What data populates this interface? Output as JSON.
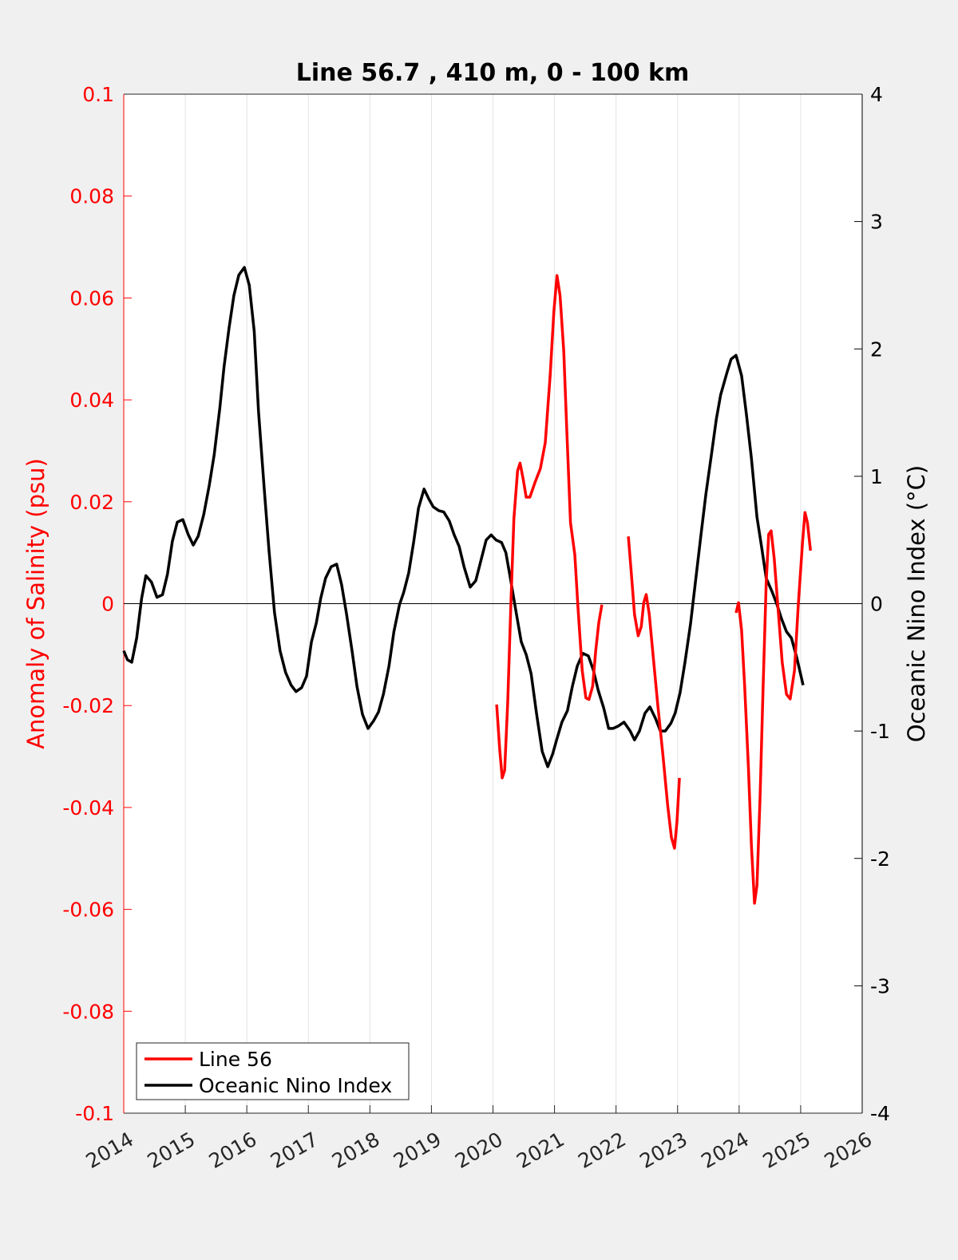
{
  "chart_data": {
    "type": "line",
    "title": "Line 56.7 , 410 m, 0 - 100 km",
    "ylabel": "Anomaly of Salinity (psu)",
    "y2label": "Oceanic Nino Index (°C)",
    "y_color": "#ff0000",
    "y2_color": "#000000",
    "xlim": [
      2014,
      2026
    ],
    "xticks": [
      2014,
      2015,
      2016,
      2017,
      2018,
      2019,
      2020,
      2021,
      2022,
      2023,
      2024,
      2025,
      2026
    ],
    "ylim": [
      -0.1,
      0.1
    ],
    "yticks": [
      -0.1,
      -0.08,
      -0.06,
      -0.04,
      -0.02,
      0,
      0.02,
      0.04,
      0.06,
      0.08,
      0.1
    ],
    "y2lim": [
      -4,
      4
    ],
    "y2ticks": [
      -4,
      -3,
      -2,
      -1,
      0,
      1,
      2,
      3,
      4
    ],
    "grid": true,
    "zero_line": true,
    "legend": "lower left",
    "series": [
      {
        "name": "Line 56",
        "color": "#ff0000",
        "axis": "y",
        "x": [
          2020.06,
          2020.11,
          2020.15,
          2020.19,
          2020.24,
          2020.29,
          2020.34,
          2020.4,
          2020.44,
          2020.49,
          2020.54,
          2020.6,
          2020.68,
          2020.77,
          2020.85,
          2020.93,
          2020.99,
          2021.04,
          2021.09,
          2021.15,
          2021.2,
          2021.26,
          2021.33,
          2021.38,
          2021.45,
          2021.51,
          2021.56,
          2021.62,
          2021.67,
          2021.72,
          2021.77,
          null,
          2022.2,
          2022.25,
          2022.3,
          2022.36,
          2022.41,
          2022.45,
          2022.49,
          2022.54,
          2022.6,
          2022.68,
          2022.76,
          2022.84,
          2022.9,
          2022.95,
          2022.99,
          2023.03,
          null,
          2023.95,
          2023.99,
          2024.04,
          2024.09,
          2024.15,
          2024.2,
          2024.25,
          2024.29,
          2024.34,
          2024.39,
          2024.44,
          2024.48,
          2024.52,
          2024.57,
          2024.64,
          2024.7,
          2024.77,
          2024.83,
          2024.9,
          2024.96,
          2025.03,
          2025.07,
          2025.11,
          2025.16
        ],
        "values": [
          -0.0198,
          -0.0287,
          -0.0342,
          -0.0327,
          -0.0193,
          -0.0005,
          0.0167,
          0.0261,
          0.0276,
          0.0245,
          0.0209,
          0.0209,
          0.0237,
          0.0265,
          0.0316,
          0.0449,
          0.0574,
          0.0644,
          0.0605,
          0.0496,
          0.0339,
          0.0159,
          0.0096,
          -0.0005,
          -0.0131,
          -0.0185,
          -0.0188,
          -0.0162,
          -0.0092,
          -0.0037,
          -0.0002,
          null,
          0.0132,
          0.0057,
          -0.0021,
          -0.0063,
          -0.0045,
          0.0002,
          0.0018,
          -0.0021,
          -0.0099,
          -0.0201,
          -0.0295,
          -0.0397,
          -0.0459,
          -0.048,
          -0.0428,
          -0.0342,
          null,
          -0.0018,
          0.0002,
          -0.0052,
          -0.0162,
          -0.0319,
          -0.0475,
          -0.0588,
          -0.0553,
          -0.0381,
          -0.0162,
          0.0041,
          0.0136,
          0.0143,
          0.0089,
          -0.0021,
          -0.0115,
          -0.0178,
          -0.0187,
          -0.0131,
          -0.0005,
          0.012,
          0.0179,
          0.0159,
          0.0104
        ]
      },
      {
        "name": "Oceanic Nino Index",
        "color": "#000000",
        "axis": "y2",
        "x": [
          2014.0,
          2014.06,
          2014.13,
          2014.21,
          2014.29,
          2014.36,
          2014.45,
          2014.54,
          2014.63,
          2014.71,
          2014.79,
          2014.87,
          2014.96,
          2015.05,
          2015.13,
          2015.21,
          2015.3,
          2015.39,
          2015.47,
          2015.56,
          2015.63,
          2015.71,
          2015.79,
          2015.87,
          2015.96,
          2016.04,
          2016.12,
          2016.19,
          2016.28,
          2016.36,
          2016.45,
          2016.54,
          2016.63,
          2016.72,
          2016.8,
          2016.89,
          2016.97,
          2017.05,
          2017.13,
          2017.2,
          2017.28,
          2017.37,
          2017.46,
          2017.54,
          2017.62,
          2017.71,
          2017.79,
          2017.88,
          2017.97,
          2018.06,
          2018.14,
          2018.22,
          2018.31,
          2018.39,
          2018.48,
          2018.55,
          2018.63,
          2018.71,
          2018.79,
          2018.88,
          2018.96,
          2019.03,
          2019.12,
          2019.2,
          2019.29,
          2019.37,
          2019.45,
          2019.53,
          2019.63,
          2019.72,
          2019.81,
          2019.89,
          2019.97,
          2020.05,
          2020.14,
          2020.21,
          2020.29,
          2020.37,
          2020.46,
          2020.54,
          2020.62,
          2020.71,
          2020.8,
          2020.89,
          2020.97,
          2021.04,
          2021.12,
          2021.21,
          2021.29,
          2021.37,
          2021.46,
          2021.55,
          2021.63,
          2021.71,
          2021.8,
          2021.88,
          2021.95,
          2022.04,
          2022.13,
          2022.23,
          2022.3,
          2022.38,
          2022.47,
          2022.55,
          2022.64,
          2022.72,
          2022.8,
          2022.89,
          2022.96,
          2023.04,
          2023.12,
          2023.21,
          2023.29,
          2023.38,
          2023.46,
          2023.55,
          2023.63,
          2023.7,
          2023.8,
          2023.87,
          2023.95,
          2024.04,
          2024.12,
          2024.2,
          2024.29,
          2024.37,
          2024.44,
          2024.53,
          2024.61,
          2024.69,
          2024.77,
          2024.85,
          2024.94,
          2025.04
        ],
        "values": [
          -0.37,
          -0.44,
          -0.46,
          -0.27,
          0.04,
          0.22,
          0.17,
          0.05,
          0.07,
          0.23,
          0.49,
          0.64,
          0.66,
          0.54,
          0.46,
          0.53,
          0.7,
          0.93,
          1.17,
          1.53,
          1.86,
          2.16,
          2.42,
          2.58,
          2.64,
          2.5,
          2.14,
          1.51,
          0.92,
          0.42,
          -0.07,
          -0.37,
          -0.54,
          -0.64,
          -0.69,
          -0.66,
          -0.57,
          -0.3,
          -0.15,
          0.04,
          0.2,
          0.29,
          0.31,
          0.15,
          -0.08,
          -0.37,
          -0.65,
          -0.87,
          -0.98,
          -0.92,
          -0.85,
          -0.71,
          -0.49,
          -0.22,
          -0.01,
          0.09,
          0.24,
          0.48,
          0.75,
          0.9,
          0.82,
          0.76,
          0.73,
          0.72,
          0.65,
          0.54,
          0.45,
          0.29,
          0.13,
          0.18,
          0.35,
          0.5,
          0.54,
          0.5,
          0.48,
          0.4,
          0.18,
          -0.05,
          -0.3,
          -0.4,
          -0.55,
          -0.87,
          -1.16,
          -1.28,
          -1.18,
          -1.06,
          -0.93,
          -0.84,
          -0.65,
          -0.49,
          -0.39,
          -0.41,
          -0.52,
          -0.68,
          -0.82,
          -0.98,
          -0.98,
          -0.96,
          -0.93,
          -1.0,
          -1.07,
          -1.0,
          -0.86,
          -0.81,
          -0.9,
          -1.0,
          -1.0,
          -0.94,
          -0.86,
          -0.7,
          -0.46,
          -0.16,
          0.17,
          0.54,
          0.86,
          1.17,
          1.45,
          1.64,
          1.81,
          1.92,
          1.95,
          1.79,
          1.48,
          1.14,
          0.68,
          0.43,
          0.2,
          0.1,
          0.0,
          -0.12,
          -0.22,
          -0.27,
          -0.43,
          -0.64
        ]
      }
    ]
  }
}
